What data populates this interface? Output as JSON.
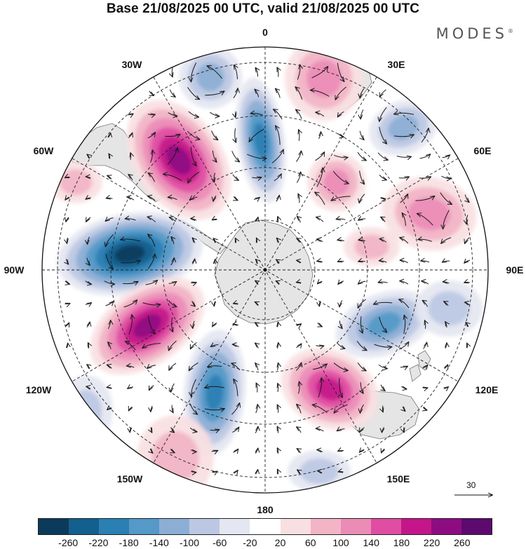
{
  "title": "Base 21/08/2025 00 UTC, valid 21/08/2025 00 UTC",
  "brand": {
    "name": "MODES",
    "mark": "®"
  },
  "longitude_labels": {
    "lon_0": "0",
    "lon_30e": "30E",
    "lon_60e": "60E",
    "lon_90e": "90E",
    "lon_120e": "120E",
    "lon_150e": "150E",
    "lon_180": "180",
    "lon_150w": "150W",
    "lon_120w": "120W",
    "lon_90w": "90W",
    "lon_60w": "60W",
    "lon_30w": "30W"
  },
  "reference_vector": {
    "label": "30"
  },
  "colorbar": {
    "labels": [
      "-260",
      "-220",
      "-180",
      "-140",
      "-100",
      "-60",
      "-20",
      "20",
      "60",
      "100",
      "140",
      "180",
      "220",
      "260"
    ],
    "colors": [
      "#0b3a5a",
      "#135f8d",
      "#2a7fb3",
      "#5499c8",
      "#8caed5",
      "#bcc8e3",
      "#e4e6f1",
      "#ffffff",
      "#f8dfe2",
      "#f2b4c6",
      "#eb8cb7",
      "#df4ea3",
      "#c4168a",
      "#8e0c82",
      "#5c0a6e"
    ]
  },
  "colors": {
    "land": "#e5e5e5",
    "coast": "#777777",
    "grid": "#222222",
    "arrow": "#1a1a1a"
  }
}
